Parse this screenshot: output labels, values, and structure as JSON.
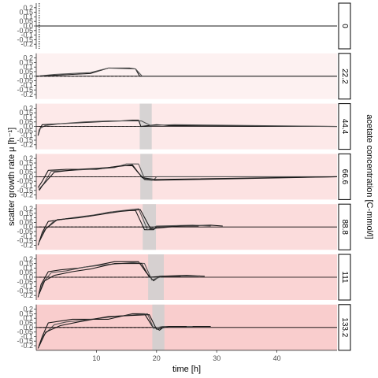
{
  "chart_data": {
    "type": "line",
    "xlabel": "time [h]",
    "ylabel": "scatter growth rate  μ [h⁻¹]",
    "right_label": "acetate concentration [C-mmol/l]",
    "xlim": [
      0,
      50
    ],
    "x_ticks": [
      10,
      20,
      30,
      40
    ],
    "ylim": [
      -0.25,
      0.25
    ],
    "y_ticks": [
      0.2,
      0.1,
      0.0,
      -0.1,
      -0.2
    ],
    "y_tick_labels": [
      "0.2",
      "0.1",
      "0.0",
      "-0.1",
      "-0.2"
    ],
    "y_tick_minor": [
      0.15,
      0.05,
      -0.05,
      -0.15
    ],
    "y_tick_minor_labels": [
      "0.15",
      "0.05",
      "-0.05",
      "-0.15"
    ],
    "colors": {
      "strip_fill": "#ffffff",
      "band": "#cfcfcf",
      "line_dark": "#1a1a1a",
      "line_mid": "#555555",
      "panel_fills": [
        "#ffffff",
        "#fdf1f1",
        "#fde9e9",
        "#fce2e2",
        "#fbdcdc",
        "#fad4d4",
        "#f9cdcd"
      ]
    },
    "panels": [
      {
        "label": "0",
        "band": null,
        "series": [
          {
            "x": [
              0,
              50
            ],
            "y": [
              0,
              0
            ],
            "style": "solid"
          }
        ]
      },
      {
        "label": "22.2",
        "band": null,
        "series": [
          {
            "x": [
              0,
              3,
              6,
              9,
              12,
              15.5,
              16.5,
              17.2,
              50
            ],
            "y": [
              0,
              0.01,
              0.02,
              0.03,
              0.09,
              0.09,
              0.08,
              0,
              0
            ],
            "style": "solid"
          },
          {
            "x": [
              0,
              3,
              6,
              9,
              12,
              16.5,
              17.6,
              50
            ],
            "y": [
              0,
              0.02,
              0.03,
              0.04,
              0.09,
              0.08,
              0,
              0
            ],
            "style": "solid"
          },
          {
            "x": [
              0,
              13,
              17
            ],
            "y": [
              0,
              0,
              0
            ],
            "style": "dashed"
          }
        ]
      },
      {
        "label": "44.4",
        "band": [
          17.2,
          19.2
        ],
        "series": [
          {
            "x": [
              0.3,
              0.5,
              1,
              4,
              7,
              10,
              14,
              16,
              17,
              17.4,
              20,
              22,
              50
            ],
            "y": [
              -0.1,
              -0.04,
              0.02,
              0.03,
              0.04,
              0.05,
              0.06,
              0.07,
              0.07,
              0,
              0.02,
              0.01,
              0
            ],
            "style": "solid"
          },
          {
            "x": [
              0.4,
              0.7,
              1.5,
              4,
              8,
              12,
              17.5,
              19,
              23,
              50
            ],
            "y": [
              -0.08,
              -0.02,
              0.01,
              0.03,
              0.05,
              0.06,
              0.06,
              0.01,
              0.02,
              0
            ],
            "style": "solid"
          },
          {
            "x": [
              0.5,
              17
            ],
            "y": [
              0,
              0
            ],
            "style": "dashed"
          }
        ]
      },
      {
        "label": "66.6",
        "band": [
          17.3,
          19.3
        ],
        "series": [
          {
            "x": [
              0.3,
              1,
              2,
              5,
              10,
              12,
              14,
              16,
              17,
              18,
              19.3,
              50
            ],
            "y": [
              -0.12,
              -0.05,
              0.07,
              0.08,
              0.08,
              0.1,
              0.12,
              0.12,
              0.04,
              -0.03,
              -0.04,
              0
            ],
            "style": "solid"
          },
          {
            "x": [
              0.4,
              1.2,
              2.5,
              6,
              11,
              13,
              15,
              17,
              18,
              19.5,
              20,
              50
            ],
            "y": [
              -0.14,
              -0.08,
              0.06,
              0.07,
              0.09,
              0.1,
              0.14,
              0.14,
              -0.02,
              -0.04,
              0,
              0
            ],
            "style": "solid"
          },
          {
            "x": [
              0.5,
              1,
              3,
              7,
              12,
              16,
              17.6,
              19.8,
              50
            ],
            "y": [
              -0.15,
              -0.1,
              0.05,
              0.08,
              0.1,
              0.13,
              -0.01,
              -0.03,
              0
            ],
            "style": "solid"
          },
          {
            "x": [
              0.5,
              17
            ],
            "y": [
              0,
              0
            ],
            "style": "dashed"
          }
        ]
      },
      {
        "label": "88.8",
        "band": [
          17.7,
          19.9
        ],
        "series": [
          {
            "x": [
              0.3,
              1,
              2,
              5,
              9,
              12,
              15,
              16.5,
              18,
              19.5,
              20,
              29,
              31
            ],
            "y": [
              -0.2,
              -0.06,
              0.06,
              0.09,
              0.12,
              0.16,
              0.18,
              0.18,
              -0.03,
              -0.03,
              0,
              0.02,
              0.01
            ],
            "style": "solid"
          },
          {
            "x": [
              0.4,
              1.3,
              3,
              6,
              9.5,
              13,
              17,
              18.5,
              20,
              26,
              29
            ],
            "y": [
              -0.18,
              -0.04,
              0.07,
              0.1,
              0.13,
              0.17,
              0.2,
              -0.03,
              0.01,
              0.02,
              0.01
            ],
            "style": "solid"
          },
          {
            "x": [
              0.5,
              1.6,
              3.5,
              7,
              11,
              14,
              17.3,
              19,
              24,
              27
            ],
            "y": [
              -0.16,
              -0.02,
              0.08,
              0.1,
              0.14,
              0.17,
              0.19,
              -0.02,
              0.01,
              0.01
            ],
            "style": "solid"
          },
          {
            "x": [
              0.5,
              19
            ],
            "y": [
              0,
              0
            ],
            "style": "dashed"
          }
        ]
      },
      {
        "label": "111",
        "band": [
          18.6,
          21.2
        ],
        "series": [
          {
            "x": [
              0.3,
              0.8,
              2,
              4,
              7,
              10,
              13,
              17,
              18.3,
              19.5,
              20.5,
              25,
              28
            ],
            "y": [
              -0.22,
              -0.08,
              0.06,
              0.08,
              0.1,
              0.13,
              0.17,
              0.17,
              0.05,
              -0.04,
              0.01,
              0.02,
              0.01
            ],
            "style": "solid"
          },
          {
            "x": [
              0.4,
              1.1,
              2.5,
              5,
              8,
              12,
              16,
              18,
              19.2,
              21,
              23,
              27
            ],
            "y": [
              -0.2,
              -0.06,
              0.05,
              0.07,
              0.11,
              0.14,
              0.16,
              0.15,
              -0.03,
              0.01,
              0.01,
              0.01
            ],
            "style": "solid"
          },
          {
            "x": [
              0.5,
              1.4,
              3,
              6,
              9,
              13,
              17.5,
              18.8,
              21,
              24
            ],
            "y": [
              -0.18,
              -0.04,
              0.02,
              0.06,
              0.09,
              0.15,
              0.15,
              0,
              0.01,
              0.01
            ],
            "style": "solid"
          },
          {
            "x": [
              0.5,
              19
            ],
            "y": [
              0,
              0
            ],
            "style": "dashed"
          }
        ]
      },
      {
        "label": "133.2",
        "band": [
          19.3,
          21.3
        ],
        "series": [
          {
            "x": [
              0.3,
              1,
              2,
              4,
              6,
              12,
              16,
              18,
              19.3,
              20.5,
              21.3,
              27,
              29
            ],
            "y": [
              -0.23,
              -0.1,
              0.05,
              0.07,
              0.09,
              0.09,
              0.15,
              0.15,
              0.01,
              -0.03,
              0.01,
              0.01,
              0.01
            ],
            "style": "solid"
          },
          {
            "x": [
              0.4,
              1.3,
              3,
              5,
              8,
              13,
              18.5,
              19.5,
              21,
              23,
              26
            ],
            "y": [
              -0.22,
              -0.08,
              0.03,
              0.06,
              0.08,
              0.12,
              0.15,
              -0.01,
              0.01,
              0.01,
              0.01
            ],
            "style": "solid"
          },
          {
            "x": [
              0.5,
              1.6,
              4,
              7,
              12,
              18.8,
              20,
              22,
              25
            ],
            "y": [
              -0.2,
              -0.05,
              0.02,
              0.06,
              0.12,
              0.14,
              -0.02,
              0.01,
              0.01
            ],
            "style": "solid"
          },
          {
            "x": [
              0.5,
              19
            ],
            "y": [
              0,
              0
            ],
            "style": "dashed"
          }
        ]
      }
    ]
  }
}
